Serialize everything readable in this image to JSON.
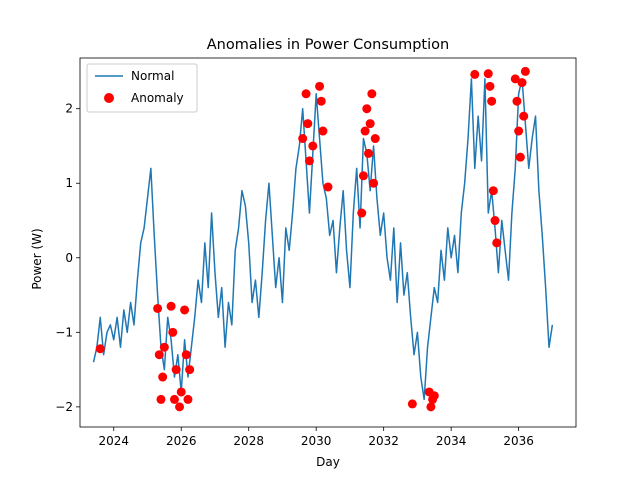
{
  "chart_data": {
    "type": "line",
    "title": "Anomalies in Power Consumption",
    "xlabel": "Day",
    "ylabel": "Power (W)",
    "xlim": [
      2023.0,
      2037.7
    ],
    "ylim": [
      -2.27,
      2.68
    ],
    "x_ticks": [
      2024,
      2026,
      2028,
      2030,
      2032,
      2034,
      2036
    ],
    "y_ticks": [
      -2,
      -1,
      0,
      1,
      2
    ],
    "legend": {
      "position": "top-left",
      "entries": [
        "Normal",
        "Anomaly"
      ]
    },
    "grid": false,
    "colors": {
      "normal": "#1f77b4",
      "anomaly": "#ff0000"
    },
    "series": [
      {
        "name": "Normal",
        "x": [
          2023.4,
          2023.5,
          2023.6,
          2023.7,
          2023.8,
          2023.9,
          2024.0,
          2024.1,
          2024.2,
          2024.3,
          2024.4,
          2024.5,
          2024.6,
          2024.7,
          2024.8,
          2024.9,
          2025.0,
          2025.1,
          2025.2,
          2025.3,
          2025.4,
          2025.5,
          2025.6,
          2025.7,
          2025.8,
          2025.9,
          2026.0,
          2026.1,
          2026.2,
          2026.3,
          2026.4,
          2026.5,
          2026.6,
          2026.7,
          2026.8,
          2026.9,
          2027.0,
          2027.1,
          2027.2,
          2027.3,
          2027.4,
          2027.5,
          2027.6,
          2027.7,
          2027.8,
          2027.9,
          2028.0,
          2028.1,
          2028.2,
          2028.3,
          2028.4,
          2028.5,
          2028.6,
          2028.7,
          2028.8,
          2028.9,
          2029.0,
          2029.1,
          2029.2,
          2029.3,
          2029.4,
          2029.5,
          2029.6,
          2029.7,
          2029.8,
          2029.9,
          2030.0,
          2030.1,
          2030.2,
          2030.3,
          2030.4,
          2030.5,
          2030.6,
          2030.7,
          2030.8,
          2030.9,
          2031.0,
          2031.1,
          2031.2,
          2031.3,
          2031.4,
          2031.5,
          2031.6,
          2031.7,
          2031.8,
          2031.9,
          2032.0,
          2032.1,
          2032.2,
          2032.3,
          2032.4,
          2032.5,
          2032.6,
          2032.7,
          2032.8,
          2032.9,
          2033.0,
          2033.1,
          2033.2,
          2033.3,
          2033.4,
          2033.5,
          2033.6,
          2033.7,
          2033.8,
          2033.9,
          2034.0,
          2034.1,
          2034.2,
          2034.3,
          2034.4,
          2034.5,
          2034.6,
          2034.7,
          2034.8,
          2034.9,
          2035.0,
          2035.1,
          2035.2,
          2035.3,
          2035.4,
          2035.5,
          2035.6,
          2035.7,
          2035.8,
          2035.9,
          2036.0,
          2036.1,
          2036.2,
          2036.3,
          2036.4,
          2036.5,
          2036.6,
          2036.7,
          2036.8,
          2036.9,
          2037.0
        ],
        "y": [
          -1.4,
          -1.2,
          -0.8,
          -1.3,
          -1.0,
          -0.9,
          -1.1,
          -0.8,
          -1.2,
          -0.7,
          -1.0,
          -0.6,
          -0.9,
          -0.3,
          0.2,
          0.4,
          0.8,
          1.2,
          0.3,
          -0.5,
          -1.2,
          -1.5,
          -0.8,
          -1.1,
          -1.6,
          -1.3,
          -1.8,
          -1.1,
          -1.6,
          -1.2,
          -0.8,
          -0.3,
          -0.6,
          0.2,
          -0.4,
          0.6,
          -0.2,
          -0.8,
          -0.4,
          -1.2,
          -0.6,
          -0.9,
          0.1,
          0.4,
          0.9,
          0.7,
          0.2,
          -0.6,
          -0.3,
          -0.8,
          -0.2,
          0.5,
          1.0,
          0.3,
          -0.4,
          0.0,
          -0.6,
          0.4,
          0.1,
          0.6,
          1.2,
          1.5,
          2.0,
          1.3,
          0.6,
          1.4,
          2.2,
          1.6,
          1.0,
          0.8,
          0.3,
          0.5,
          -0.2,
          0.4,
          0.9,
          0.1,
          -0.4,
          0.6,
          1.2,
          0.4,
          1.6,
          1.4,
          0.9,
          1.5,
          0.8,
          0.3,
          0.6,
          0.0,
          -0.3,
          0.4,
          -0.6,
          0.2,
          -0.5,
          -0.2,
          -0.8,
          -1.3,
          -1.0,
          -1.6,
          -1.9,
          -1.2,
          -0.8,
          -0.4,
          -0.6,
          0.1,
          -0.3,
          0.4,
          0.0,
          0.3,
          -0.2,
          0.6,
          1.0,
          1.6,
          2.4,
          1.2,
          1.9,
          1.3,
          2.4,
          0.6,
          0.9,
          0.4,
          -0.2,
          0.5,
          0.1,
          -0.3,
          0.6,
          1.2,
          2.2,
          2.4,
          1.8,
          1.2,
          1.6,
          1.9,
          0.9,
          0.3,
          -0.4,
          -1.2,
          -0.9
        ]
      },
      {
        "name": "Anomaly",
        "x": [
          2023.6,
          2025.3,
          2025.35,
          2025.4,
          2025.45,
          2025.5,
          2025.7,
          2025.75,
          2025.8,
          2025.85,
          2025.95,
          2026.0,
          2026.1,
          2026.15,
          2026.2,
          2026.25,
          2029.6,
          2029.7,
          2029.75,
          2029.8,
          2029.9,
          2030.1,
          2030.15,
          2030.2,
          2030.35,
          2031.35,
          2031.4,
          2031.45,
          2031.5,
          2031.55,
          2031.6,
          2031.65,
          2031.7,
          2031.75,
          2032.85,
          2033.35,
          2033.4,
          2033.45,
          2033.5,
          2034.7,
          2035.1,
          2035.15,
          2035.2,
          2035.25,
          2035.3,
          2035.35,
          2035.9,
          2035.95,
          2036.0,
          2036.05,
          2036.1,
          2036.15,
          2036.2
        ],
        "y": [
          -1.22,
          -0.68,
          -1.3,
          -1.9,
          -1.6,
          -1.2,
          -0.65,
          -1.0,
          -1.9,
          -1.5,
          -2.0,
          -1.8,
          -0.7,
          -1.3,
          -1.9,
          -1.5,
          1.6,
          2.2,
          1.8,
          1.3,
          1.5,
          2.3,
          2.1,
          1.7,
          0.95,
          0.6,
          1.1,
          1.7,
          2.0,
          1.4,
          1.8,
          2.2,
          1.0,
          1.6,
          -1.96,
          -1.8,
          -2.0,
          -1.9,
          -1.85,
          2.46,
          2.47,
          2.3,
          2.1,
          0.9,
          0.5,
          0.2,
          2.4,
          2.1,
          1.7,
          1.35,
          2.35,
          1.9,
          2.5
        ]
      }
    ]
  }
}
